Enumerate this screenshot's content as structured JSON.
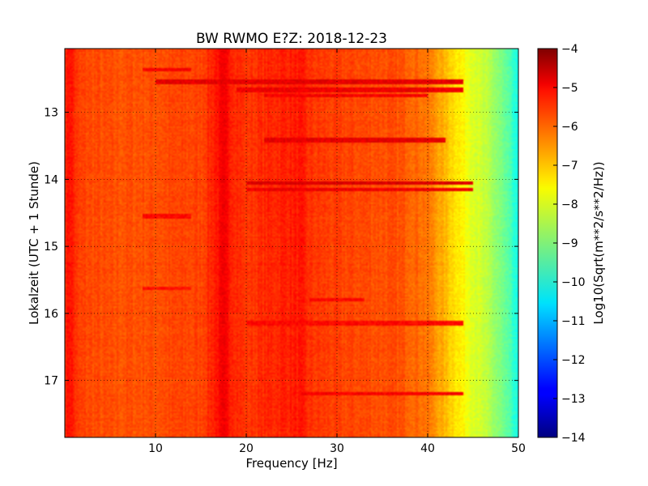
{
  "chart_data": {
    "type": "heatmap",
    "title": "BW RWMO E?Z: 2018-12-23",
    "xlabel": "Frequency [Hz]",
    "ylabel": "Lokalzeit (UTC + 1 Stunde)",
    "xlim": [
      0,
      50
    ],
    "ylim": [
      12.05,
      17.85
    ],
    "y_inverted": true,
    "grid": true,
    "x_ticks": [
      10,
      20,
      30,
      40,
      50
    ],
    "y_ticks": [
      13,
      14,
      15,
      16,
      17
    ],
    "colorbar": {
      "label": "Log10(Sqrt(m**2/s**2/Hz))",
      "colormap": "jet",
      "range": [
        -14,
        -4
      ],
      "ticks": [
        -4,
        -5,
        -6,
        -7,
        -8,
        -9,
        -10,
        -11,
        -12,
        -13,
        -14
      ]
    },
    "spectral_profile": {
      "frequency_hz": [
        0,
        0.5,
        1.5,
        5,
        10,
        15,
        16.5,
        17.5,
        18.5,
        20,
        22,
        24,
        26,
        27,
        30,
        35,
        37,
        38.5,
        40,
        41,
        42,
        43,
        44,
        45,
        46,
        47,
        48,
        49,
        50
      ],
      "log10_amplitude": [
        -5.7,
        -5.3,
        -5.9,
        -6.05,
        -6.0,
        -5.9,
        -5.5,
        -5.2,
        -5.5,
        -5.8,
        -5.65,
        -5.55,
        -5.5,
        -5.75,
        -5.9,
        -6.0,
        -6.05,
        -6.2,
        -6.4,
        -6.75,
        -7.1,
        -7.4,
        -7.75,
        -8.0,
        -8.3,
        -8.6,
        -9.0,
        -9.5,
        -10.2
      ]
    },
    "horizontal_bands": [
      {
        "time_h": 12.37,
        "f_range": [
          8.5,
          14.0
        ],
        "log10_amplitude": -5.2
      },
      {
        "time_h": 12.55,
        "f_range": [
          10.0,
          44.0
        ],
        "log10_amplitude": -5.0
      },
      {
        "time_h": 12.67,
        "f_range": [
          19.0,
          44.0
        ],
        "log10_amplitude": -5.1
      },
      {
        "time_h": 12.75,
        "f_range": [
          22.0,
          40.0
        ],
        "log10_amplitude": -5.2
      },
      {
        "time_h": 13.42,
        "f_range": [
          22.0,
          42.0
        ],
        "log10_amplitude": -5.0
      },
      {
        "time_h": 14.05,
        "f_range": [
          20.0,
          45.0
        ],
        "log10_amplitude": -4.9
      },
      {
        "time_h": 14.15,
        "f_range": [
          20.0,
          45.0
        ],
        "log10_amplitude": -5.1
      },
      {
        "time_h": 14.55,
        "f_range": [
          8.5,
          14.0
        ],
        "log10_amplitude": -5.3
      },
      {
        "time_h": 15.63,
        "f_range": [
          8.5,
          14.0
        ],
        "log10_amplitude": -5.4
      },
      {
        "time_h": 15.8,
        "f_range": [
          27.0,
          33.0
        ],
        "log10_amplitude": -5.3
      },
      {
        "time_h": 16.15,
        "f_range": [
          20.0,
          44.0
        ],
        "log10_amplitude": -5.3
      },
      {
        "time_h": 17.2,
        "f_range": [
          26.0,
          44.0
        ],
        "log10_amplitude": -5.2
      }
    ]
  }
}
